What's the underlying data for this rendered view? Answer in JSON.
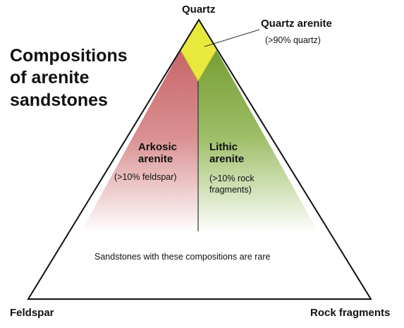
{
  "title": {
    "line1": "Compositions",
    "line2": "of arenite",
    "line3": "sandstones"
  },
  "vertices": {
    "top": "Quartz",
    "bottom_left": "Feldspar",
    "bottom_right": "Rock fragments"
  },
  "fields": {
    "quartz_arenite": {
      "name": "Quartz arenite",
      "description": "(>90% quartz)",
      "color": "#e8e83a"
    },
    "arkosic_arenite": {
      "name_line1": "Arkosic",
      "name_line2": "arenite",
      "description": "(>10% feldspar)",
      "color": "#cc6e70"
    },
    "lithic_arenite": {
      "name_line1": "Lithic",
      "name_line2": "arenite",
      "description_line1": "(>10% rock",
      "description_line2": "fragments)",
      "color": "#7ea63c"
    },
    "rare_region": {
      "description": "Sandstones with these compositions are rare"
    }
  },
  "colors": {
    "outline": "#111111",
    "background": "#ffffff"
  }
}
